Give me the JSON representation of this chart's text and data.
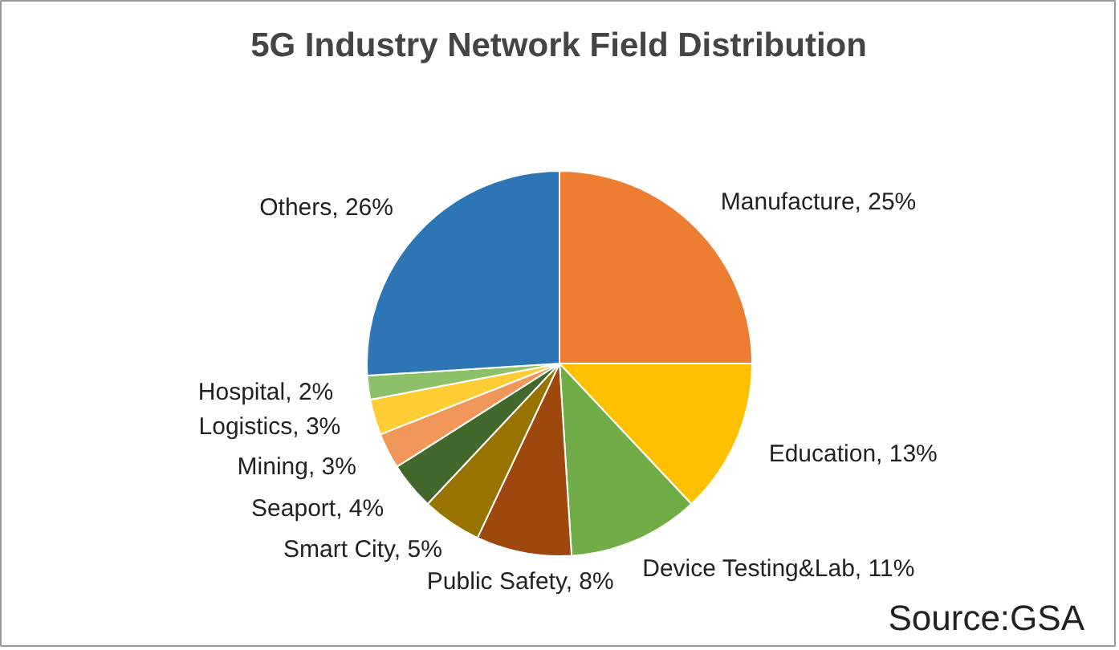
{
  "chart_data": {
    "type": "pie",
    "title": "5G Industry Network Field Distribution",
    "categories": [
      "Manufacture",
      "Education",
      "Device Testing&Lab",
      "Public Safety",
      "Smart City",
      "Seaport",
      "Mining",
      "Logistics",
      "Hospital",
      "Others"
    ],
    "values": [
      25,
      13,
      11,
      8,
      5,
      4,
      3,
      3,
      2,
      26
    ],
    "value_labels": [
      "25%",
      "13%",
      "11%",
      "8%",
      "5%",
      "4%",
      "3%",
      "3%",
      "2%",
      "26%"
    ],
    "colors": [
      "#ed7d31",
      "#ffc000",
      "#70ad47",
      "#9e480e",
      "#997300",
      "#43682b",
      "#f1975a",
      "#ffcd33",
      "#8cc168",
      "#2e75b6"
    ],
    "annotations": [
      "Source:GSA"
    ]
  }
}
